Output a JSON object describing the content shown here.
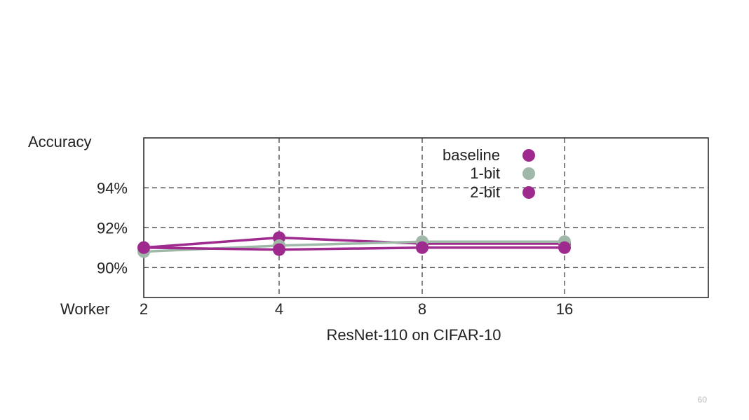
{
  "slide": {
    "page_number": "60"
  },
  "chart_data": {
    "type": "line",
    "title": "",
    "xlabel": "ResNet-110 on CIFAR-10",
    "x_axis_name": "Worker",
    "ylabel": "Accuracy",
    "categories": [
      "2",
      "4",
      "8",
      "16"
    ],
    "y_ticks": [
      90,
      92,
      94
    ],
    "y_tick_labels": [
      "90%",
      "92%",
      "94%"
    ],
    "ylim": [
      88.5,
      96.5
    ],
    "grid": true,
    "legend_position": "top-right",
    "series": [
      {
        "name": "baseline",
        "color": "#9e2a8e",
        "values": [
          91.0,
          91.5,
          91.2,
          91.2
        ]
      },
      {
        "name": "1-bit",
        "color": "#9fb8a8",
        "values": [
          90.8,
          91.1,
          91.3,
          91.3
        ]
      },
      {
        "name": "2-bit",
        "color": "#9e2a8e",
        "values": [
          91.0,
          90.9,
          91.0,
          91.0
        ]
      }
    ]
  }
}
